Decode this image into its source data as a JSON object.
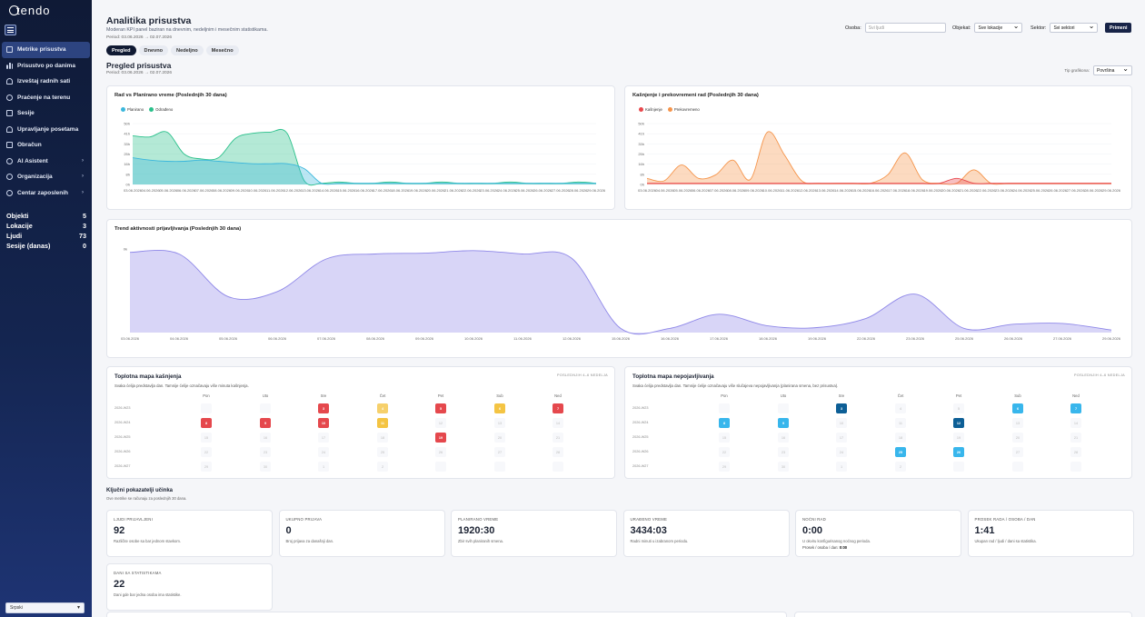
{
  "app": {
    "logo": "tendo"
  },
  "sidebar": {
    "items": [
      {
        "label": "Metrike prisustva",
        "icon": "clipboard-icon",
        "active": true,
        "arrow": false
      },
      {
        "label": "Prisustvo po danima",
        "icon": "bar-chart-icon",
        "active": false,
        "arrow": false
      },
      {
        "label": "Izveštaj radnih sati",
        "icon": "person-icon",
        "active": false,
        "arrow": false
      },
      {
        "label": "Praćenje na terenu",
        "icon": "map-pin-icon",
        "active": false,
        "arrow": false
      },
      {
        "label": "Sesije",
        "icon": "calendar-icon",
        "active": false,
        "arrow": false
      },
      {
        "label": "Upravljanje posetama",
        "icon": "people-icon",
        "active": false,
        "arrow": false
      },
      {
        "label": "Obračun",
        "icon": "wallet-icon",
        "active": false,
        "arrow": false
      },
      {
        "label": "AI Asistent",
        "icon": "robot-icon",
        "active": false,
        "arrow": true
      },
      {
        "label": "Organizacija",
        "icon": "org-icon",
        "active": false,
        "arrow": true
      },
      {
        "label": "Centar zaposlenih",
        "icon": "plus-icon",
        "active": false,
        "arrow": true
      }
    ],
    "stats": [
      {
        "label": "Objekti",
        "value": "5"
      },
      {
        "label": "Lokacije",
        "value": "3"
      },
      {
        "label": "Ljudi",
        "value": "73"
      },
      {
        "label": "Sesije (danas)",
        "value": "0"
      }
    ],
    "language": "Srpski"
  },
  "header": {
    "title": "Analitika prisustva",
    "subtitle": "Moderan KPI panel baziran na dnevnim, nedeljnim i mesečnim statistikama.",
    "period": "Period: 03.06.2026 → 02.07.2026",
    "tabs": [
      {
        "label": "Pregled",
        "active": true
      },
      {
        "label": "Dnevno",
        "active": false
      },
      {
        "label": "Nedeljno",
        "active": false
      },
      {
        "label": "Mesečno",
        "active": false
      }
    ]
  },
  "filters": {
    "osoba_label": "Osoba:",
    "osoba_placeholder": "Svi ljudi",
    "objekat_label": "Objekat:",
    "objekat_value": "Sve lokacije",
    "sektor_label": "Sektor:",
    "sektor_value": "Svi sektori",
    "apply_label": "Primeni"
  },
  "overview": {
    "title": "Pregled prisustva",
    "period": "Period: 03.06.2026 → 02.07.2026",
    "view_label": "Tip grafikona:",
    "view_value": "Površina"
  },
  "chart_data": [
    {
      "type": "area",
      "title": "Rad vs Planirano vreme (Poslednjih 30 dana)",
      "x": [
        "03.06.2026",
        "04.06.2026",
        "05.06.2026",
        "06.06.2026",
        "07.06.2026",
        "08.06.2026",
        "09.06.2026",
        "10.06.2026",
        "11.06.2026",
        "12.06.2026",
        "13.06.2026",
        "14.06.2026",
        "15.06.2026",
        "16.06.2026",
        "17.06.2026",
        "18.06.2026",
        "19.06.2026",
        "20.06.2026",
        "21.06.2026",
        "22.06.2026",
        "23.06.2026",
        "24.06.2026",
        "25.06.2026",
        "26.06.2026",
        "27.06.2026",
        "28.06.2026",
        "29.06.2026",
        "30.06.2026"
      ],
      "x_ticks": [
        "03.06.2026",
        "04.06.2026",
        "05.06.2026",
        "06.06.2026",
        "07.06.2026",
        "08.06.2026",
        "09.06.2026",
        "10.06.2026",
        "11.06.2026",
        "12.06.2026",
        "13.06.2026",
        "14.06.2026",
        "15.06.2026",
        "16.06.2026",
        "17.06.2026",
        "18.06.2026",
        "19.06.2026",
        "20.06.2026",
        "21.06.2026",
        "22.06.2026",
        "23.06.2026",
        "24.06.2026",
        "25.06.2026",
        "26.06.2026",
        "27.06.2026",
        "28.06.2026",
        "29.06.2026"
      ],
      "y_ticks": [
        "0h",
        "8h",
        "16h",
        "25h",
        "33h",
        "41h",
        "50h"
      ],
      "ylim": [
        0,
        50
      ],
      "series": [
        {
          "name": "Planirano",
          "color": "#3bb7dc",
          "values": [
            22,
            20,
            19,
            19,
            20,
            19,
            18,
            17,
            17,
            17,
            13,
            1,
            1,
            1,
            1,
            1,
            1,
            1,
            1,
            1,
            1,
            1,
            1,
            1,
            1,
            1,
            1,
            1
          ]
        },
        {
          "name": "Odrađeno",
          "color": "#29c08a",
          "values": [
            40,
            39,
            43,
            25,
            21,
            22,
            38,
            42,
            43,
            42,
            3,
            1,
            2,
            1,
            1,
            2,
            1,
            1,
            2,
            1,
            1,
            1,
            2,
            1,
            1,
            1,
            2,
            1
          ]
        }
      ],
      "legend": "top-left"
    },
    {
      "type": "area",
      "title": "Kašnjenje i prekovremeni rad (Poslednjih 30 dana)",
      "x": [
        "03.06.2026",
        "04.06.2026",
        "05.06.2026",
        "06.06.2026",
        "07.06.2026",
        "08.06.2026",
        "09.06.2026",
        "10.06.2026",
        "11.06.2026",
        "12.06.2026",
        "13.06.2026",
        "14.06.2026",
        "15.06.2026",
        "16.06.2026",
        "17.06.2026",
        "18.06.2026",
        "19.06.2026",
        "20.06.2026",
        "21.06.2026",
        "22.06.2026",
        "23.06.2026",
        "24.06.2026",
        "25.06.2026",
        "26.06.2026",
        "27.06.2026",
        "28.06.2026",
        "29.06.2026",
        "30.06.2026"
      ],
      "x_ticks": [
        "03.06.2026",
        "04.06.2026",
        "05.06.2026",
        "06.06.2026",
        "07.06.2026",
        "08.06.2026",
        "09.06.2026",
        "10.06.2026",
        "11.06.2026",
        "12.06.2026",
        "13.06.2026",
        "14.06.2026",
        "15.06.2026",
        "16.06.2026",
        "17.06.2026",
        "18.06.2026",
        "19.06.2026",
        "20.06.2026",
        "21.06.2026",
        "22.06.2026",
        "23.06.2026",
        "24.06.2026",
        "25.06.2026",
        "26.06.2026",
        "27.06.2026",
        "28.06.2026",
        "29.06.2026"
      ],
      "y_ticks": [
        "0h",
        "8h",
        "16h",
        "25h",
        "33h",
        "41h",
        "50h"
      ],
      "ylim": [
        0,
        50
      ],
      "series": [
        {
          "name": "Kašnjenje",
          "color": "#e8474c",
          "values": [
            1,
            1,
            1,
            1,
            1,
            1,
            1,
            1,
            1,
            1,
            1,
            1,
            1,
            1,
            1,
            1,
            1,
            1,
            5,
            1,
            1,
            1,
            1,
            1,
            1,
            1,
            1,
            1
          ]
        },
        {
          "name": "Prekovremeno",
          "color": "#f5944a",
          "values": [
            5,
            3,
            16,
            5,
            8,
            20,
            4,
            43,
            24,
            3,
            1,
            1,
            1,
            1,
            8,
            26,
            4,
            1,
            1,
            12,
            1,
            1,
            1,
            1,
            1,
            1,
            1,
            1
          ]
        }
      ],
      "legend": "top-left"
    },
    {
      "type": "area",
      "title": "Trend aktivnosti prijavljivanja (Poslednjih 30 dana)",
      "x": [
        "03.06.2026",
        "04.06.2026",
        "05.06.2026",
        "06.06.2026",
        "07.06.2026",
        "08.06.2026",
        "09.06.2026",
        "10.06.2026",
        "11.06.2026",
        "12.06.2026",
        "15.06.2026",
        "16.06.2026",
        "17.06.2026",
        "18.06.2026",
        "19.06.2026",
        "22.06.2026",
        "23.06.2026",
        "25.06.2026",
        "26.06.2026",
        "27.06.2026",
        "29.06.2026"
      ],
      "x_ticks": [
        "03.06.2026",
        "04.06.2026",
        "05.06.2026",
        "06.06.2026",
        "07.06.2026",
        "08.06.2026",
        "09.06.2026",
        "10.06.2026",
        "11.06.2026",
        "12.06.2026",
        "15.06.2026",
        "16.06.2026",
        "17.06.2026",
        "18.06.2026",
        "19.06.2026",
        "22.06.2026",
        "23.06.2026",
        "25.06.2026",
        "26.06.2026",
        "27.06.2026",
        "29.06.2026"
      ],
      "y_ticks": [
        "0k"
      ],
      "ylim": [
        0,
        100
      ],
      "series": [
        {
          "name": "",
          "color": "#8e87e8",
          "values": [
            96,
            94,
            43,
            49,
            88,
            94,
            95,
            98,
            94,
            89,
            5,
            5,
            22,
            8,
            6,
            17,
            46,
            5,
            10,
            11,
            3
          ]
        }
      ]
    }
  ],
  "heatmaps": [
    {
      "title": "Toplotna mapa kašnjenja",
      "subtitle": "Svaka ćelija predstavlja dan. Tamnije ćelije označavaju više minuta kašnjenja.",
      "right_label": "POSLEDNJIH 4–6 NEDELJA",
      "days": [
        "Pon",
        "Uto",
        "Sre",
        "Čet",
        "Pet",
        "Sub",
        "Ned"
      ],
      "weeks": [
        "2026-W23",
        "2026-W24",
        "2026-W25",
        "2026-W26",
        "2026-W27"
      ],
      "cells": [
        [
          "",
          "",
          "3",
          "4",
          "5",
          "6",
          "7"
        ],
        [
          "8",
          "9",
          "10",
          "11",
          "12",
          "13",
          "14"
        ],
        [
          "15",
          "16",
          "17",
          "18",
          "19",
          "20",
          "21"
        ],
        [
          "22",
          "23",
          "24",
          "25",
          "26",
          "27",
          "28"
        ],
        [
          "29",
          "30",
          "1",
          "2",
          "",
          "",
          ""
        ]
      ],
      "colors": [
        [
          "",
          "",
          "#e5484d",
          "#f6d06b",
          "#e5484d",
          "#f4c443",
          "#e5484d"
        ],
        [
          "#e5484d",
          "#e5484d",
          "#e5484d",
          "#f4c443",
          "",
          "",
          ""
        ],
        [
          "",
          "",
          "",
          "",
          "#e5484d",
          "",
          ""
        ],
        [
          "",
          "",
          "",
          "",
          "",
          "",
          ""
        ],
        [
          "",
          "",
          "",
          "",
          "",
          "",
          ""
        ]
      ]
    },
    {
      "title": "Toplotna mapa nepojavljivanja",
      "subtitle": "Svaka ćelija predstavlja dan. Tamnije ćelije označavaju više slučajeva nepojavljivanja (planirana smena, bez prisustva).",
      "right_label": "POSLEDNJIH 4–6 NEDELJA",
      "days": [
        "Pon",
        "Uto",
        "Sre",
        "Čet",
        "Pet",
        "Sub",
        "Ned"
      ],
      "weeks": [
        "2026-W23",
        "2026-W24",
        "2026-W25",
        "2026-W26",
        "2026-W27"
      ],
      "cells": [
        [
          "",
          "",
          "3",
          "4",
          "5",
          "6",
          "7"
        ],
        [
          "8",
          "9",
          "10",
          "11",
          "12",
          "13",
          "14"
        ],
        [
          "15",
          "16",
          "17",
          "18",
          "19",
          "20",
          "21"
        ],
        [
          "22",
          "23",
          "24",
          "25",
          "26",
          "27",
          "28"
        ],
        [
          "29",
          "30",
          "1",
          "2",
          "",
          "",
          ""
        ]
      ],
      "colors": [
        [
          "",
          "",
          "#0d5f96",
          "",
          "",
          "#38b6ec",
          "#38b6ec"
        ],
        [
          "#38b6ec",
          "#38b6ec",
          "",
          "",
          "#0d5f96",
          "",
          ""
        ],
        [
          "",
          "",
          "",
          "",
          "",
          "",
          ""
        ],
        [
          "",
          "",
          "",
          "#38b6ec",
          "#38b6ec",
          "",
          ""
        ],
        [
          "",
          "",
          "",
          "",
          "",
          "",
          ""
        ]
      ]
    }
  ],
  "kpi": {
    "title": "Ključni pokazatelji učinka",
    "subtitle": "Ove metrike se računaju za poslednjih 30 dana.",
    "cards": [
      {
        "label": "LJUDI PRIJAVLJENI",
        "value": "92",
        "desc": "Različite osobe sa bar jednom stavkom.",
        "desc2": "",
        "desc2_value": ""
      },
      {
        "label": "UKUPNO PRIJAVA",
        "value": "0",
        "desc": "Broj prijava za današnji dan.",
        "desc2": "",
        "desc2_value": ""
      },
      {
        "label": "PLANIRANO VREME",
        "value": "1920:30",
        "desc": "Zbir svih planiranih smena.",
        "desc2": "",
        "desc2_value": ""
      },
      {
        "label": "URAĐENO VREME",
        "value": "3434:03",
        "desc": "Radni minuti u izabranom periodu.",
        "desc2": "",
        "desc2_value": ""
      },
      {
        "label": "NOĆNI RAD",
        "value": "0:00",
        "desc": "U okviru konfigurisanog noćnog perioda.",
        "desc2": "Prosek / osoba / dan:",
        "desc2_value": "0:00"
      },
      {
        "label": "PROSEK RADA / OSOBA / DAN",
        "value": "1:41",
        "desc": "Ukupan rad / ljudi / dani sa statistika.",
        "desc2": "",
        "desc2_value": ""
      },
      {
        "label": "DANI SA STATISTIKAMA",
        "value": "22",
        "desc": "Dani gde bar jedna osoba ima statistike.",
        "desc2": "",
        "desc2_value": ""
      }
    ]
  }
}
